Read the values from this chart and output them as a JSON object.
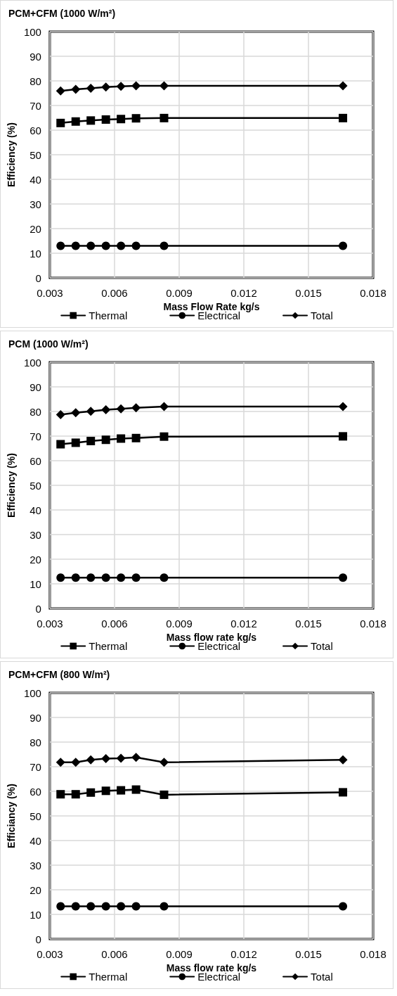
{
  "chart_data": [
    {
      "type": "line",
      "title": "PCM+CFM (1000 W/m²)",
      "xlabel": "Mass Flow Rate kg/s",
      "ylabel": "Efficiency (%)",
      "x": [
        0.0035,
        0.0042,
        0.0049,
        0.0056,
        0.0063,
        0.007,
        0.0083,
        0.0166
      ],
      "xlim": [
        0.003,
        0.018
      ],
      "xticks": [
        0.003,
        0.006,
        0.009,
        0.012,
        0.015,
        0.018
      ],
      "ylim": [
        0,
        100
      ],
      "yticks": [
        0,
        10,
        20,
        30,
        40,
        50,
        60,
        70,
        80,
        90,
        100
      ],
      "grid": true,
      "legend": "bottom",
      "line_style": "solid",
      "series": [
        {
          "name": "Thermal",
          "color": "#000000",
          "marker": "square",
          "values": [
            62.9,
            63.5,
            63.9,
            64.3,
            64.5,
            64.8,
            64.9,
            64.9
          ]
        },
        {
          "name": "Electrical",
          "color": "#000000",
          "marker": "circle",
          "values": [
            13,
            13,
            13,
            13,
            13,
            13,
            13,
            13
          ]
        },
        {
          "name": "Total",
          "color": "#000000",
          "marker": "diamond",
          "values": [
            75.9,
            76.6,
            77,
            77.5,
            77.8,
            78,
            78,
            78
          ]
        }
      ]
    },
    {
      "type": "line",
      "title": "PCM (1000 W/m²)",
      "xlabel": "Mass flow rate kg/s",
      "ylabel": "Efficiency (%)",
      "x": [
        0.0035,
        0.0042,
        0.0049,
        0.0056,
        0.0063,
        0.007,
        0.0083,
        0.0166
      ],
      "xlim": [
        0.003,
        0.018
      ],
      "xticks": [
        0.003,
        0.006,
        0.009,
        0.012,
        0.015,
        0.018
      ],
      "ylim": [
        0,
        100
      ],
      "yticks": [
        0,
        10,
        20,
        30,
        40,
        50,
        60,
        70,
        80,
        90,
        100
      ],
      "grid": true,
      "legend": "bottom",
      "line_style": "solid",
      "series": [
        {
          "name": "Thermal",
          "color": "#000000",
          "marker": "square",
          "values": [
            66.7,
            67.3,
            68,
            68.5,
            69,
            69.2,
            69.8,
            69.9
          ]
        },
        {
          "name": "Electrical",
          "color": "#000000",
          "marker": "circle",
          "values": [
            12.5,
            12.5,
            12.5,
            12.5,
            12.5,
            12.5,
            12.5,
            12.5
          ]
        },
        {
          "name": "Total",
          "color": "#000000",
          "marker": "diamond",
          "values": [
            78.7,
            79.5,
            80.1,
            80.7,
            81.1,
            81.5,
            82,
            82
          ]
        }
      ]
    },
    {
      "type": "line",
      "title": "PCM+CFM (800 W/m²)",
      "xlabel": "Mass flow rate kg/s",
      "ylabel": "Efficiancy (%)",
      "x": [
        0.0035,
        0.0042,
        0.0049,
        0.0056,
        0.0063,
        0.007,
        0.0083,
        0.0166
      ],
      "xlim": [
        0.003,
        0.018
      ],
      "xticks": [
        0.003,
        0.006,
        0.009,
        0.012,
        0.015,
        0.018
      ],
      "ylim": [
        0,
        100
      ],
      "yticks": [
        0,
        10,
        20,
        30,
        40,
        50,
        60,
        70,
        80,
        90,
        100
      ],
      "grid": true,
      "legend": "bottom",
      "line_style": "solid",
      "series": [
        {
          "name": "Thermal",
          "color": "#000000",
          "marker": "square",
          "values": [
            58.8,
            58.8,
            59.5,
            60.2,
            60.4,
            60.7,
            58.6,
            59.6
          ]
        },
        {
          "name": "Electrical",
          "color": "#000000",
          "marker": "circle",
          "values": [
            13.3,
            13.3,
            13.3,
            13.3,
            13.3,
            13.3,
            13.3,
            13.3
          ]
        },
        {
          "name": "Total",
          "color": "#000000",
          "marker": "diamond",
          "values": [
            71.8,
            71.8,
            72.8,
            73.3,
            73.4,
            73.8,
            71.8,
            72.8
          ]
        }
      ]
    }
  ]
}
